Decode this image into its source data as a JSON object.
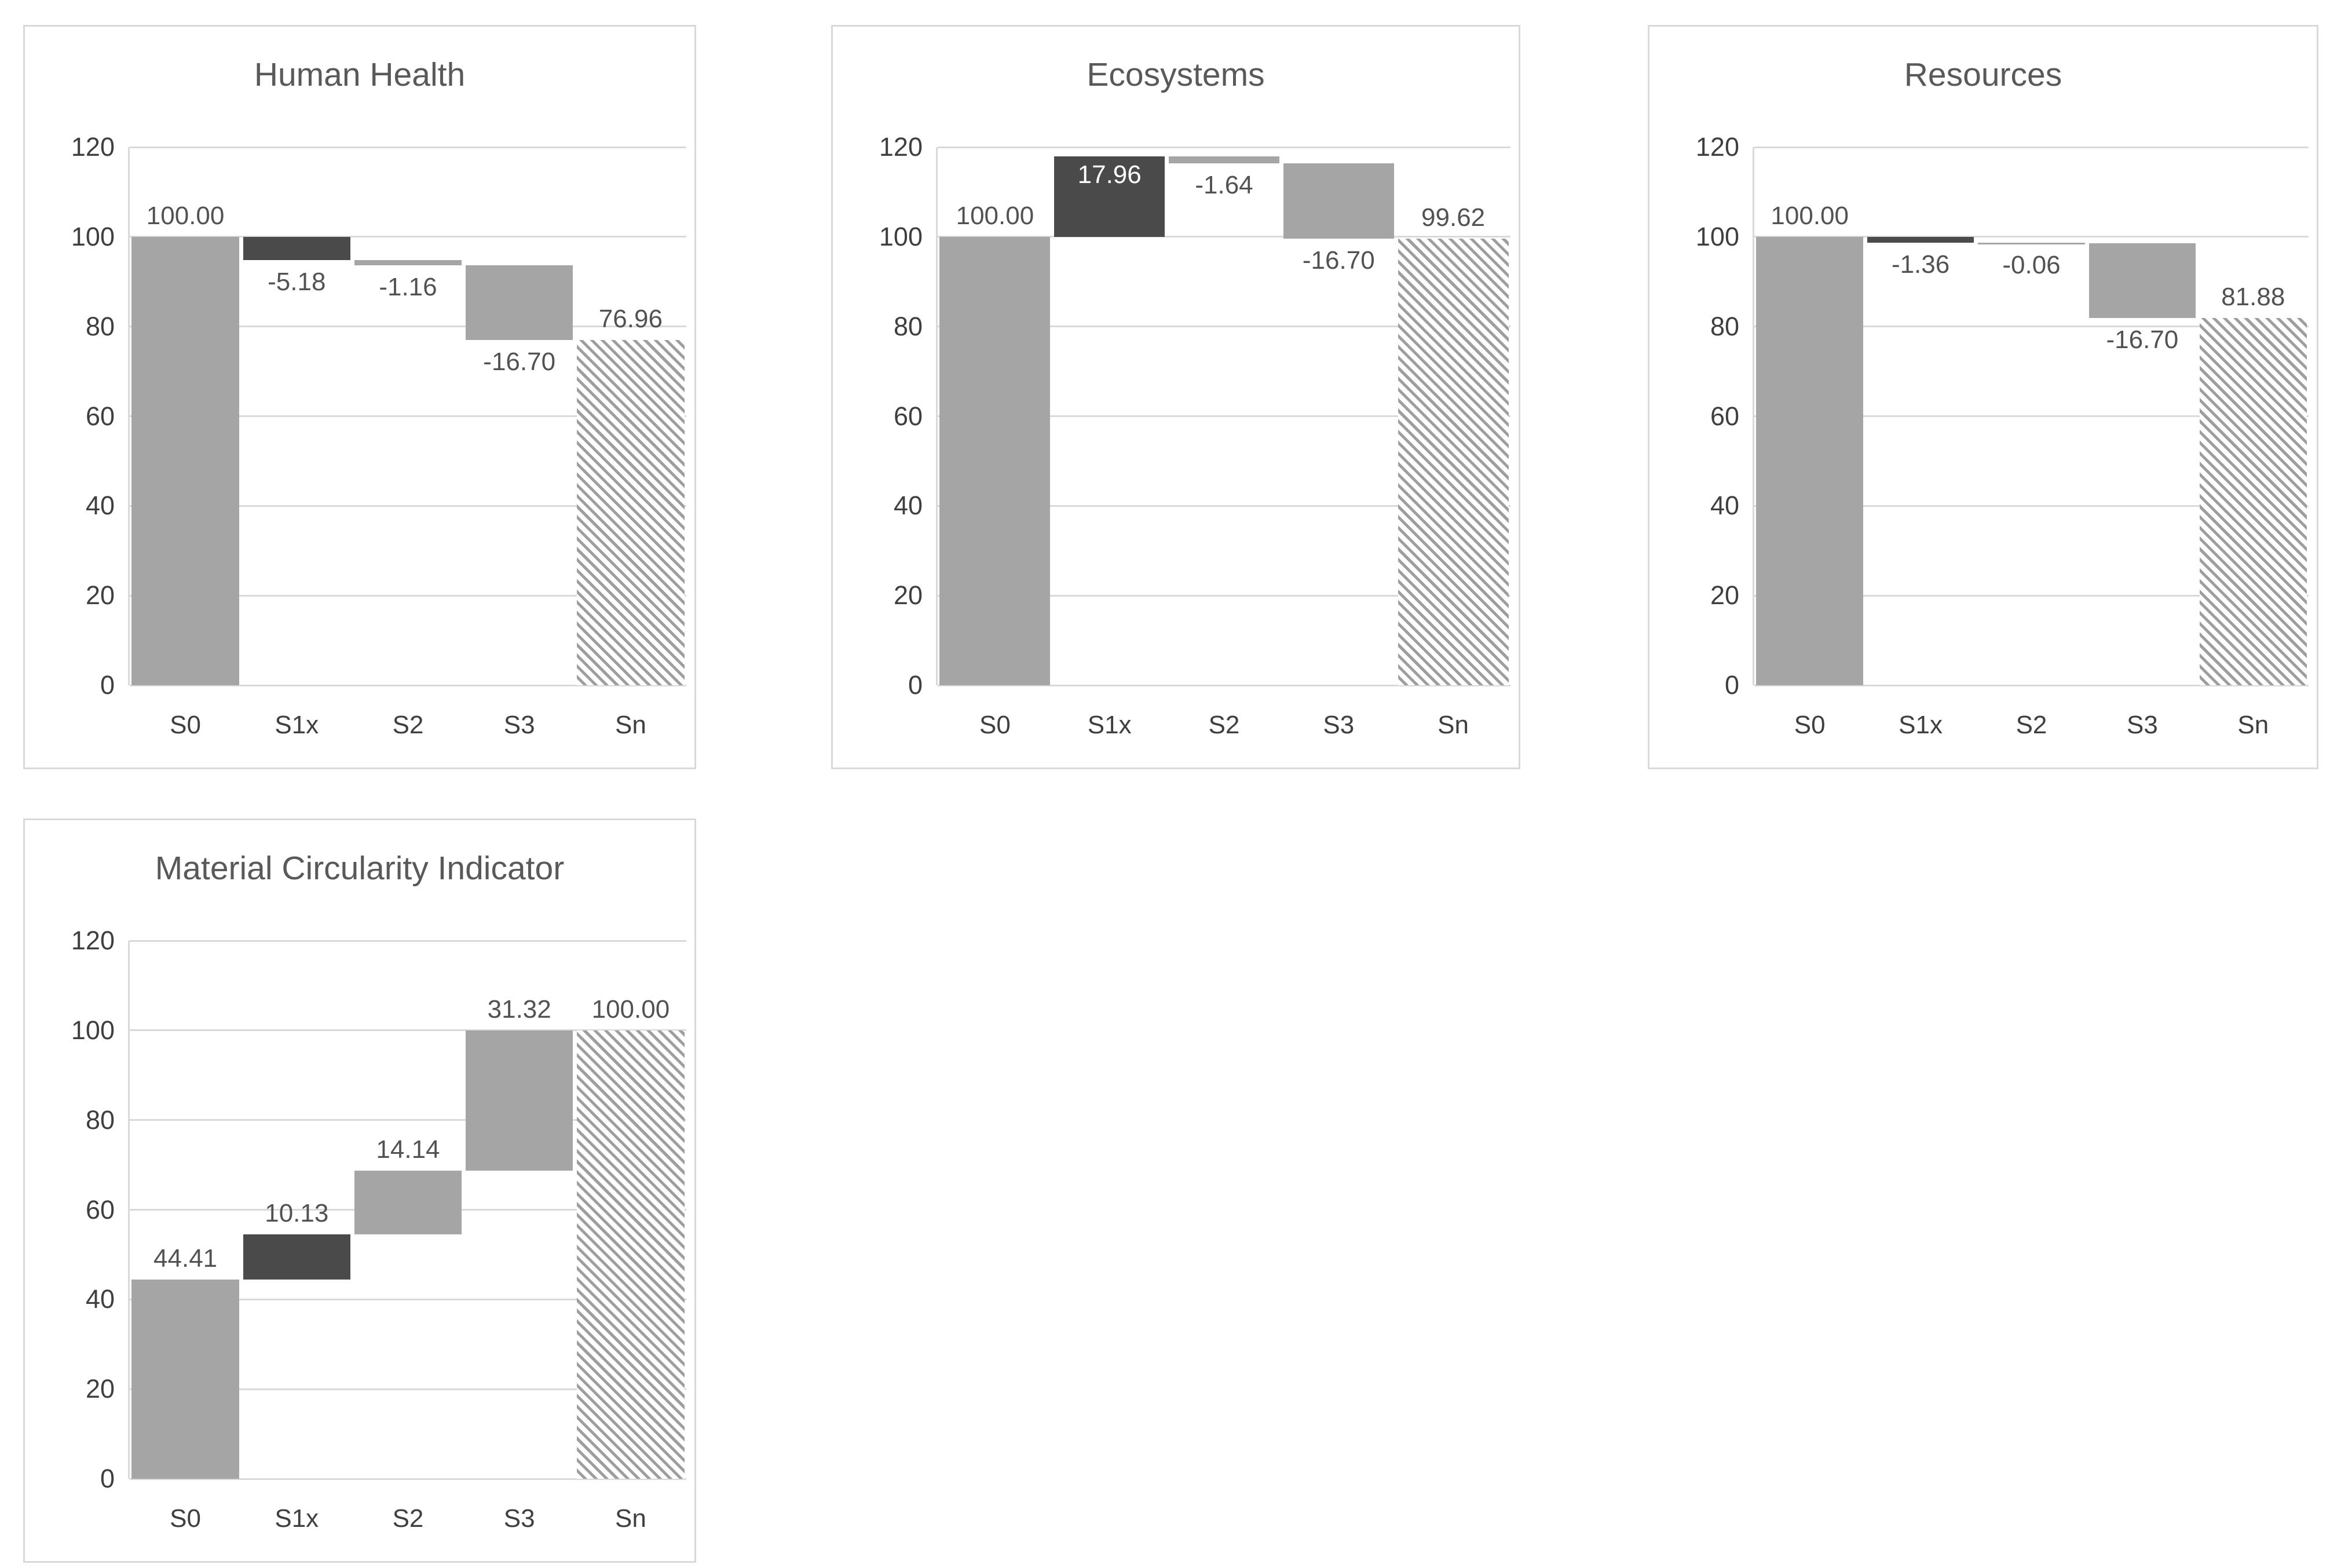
{
  "page": {
    "background": "#ffffff"
  },
  "colors": {
    "bar_gray": "#a5a5a5",
    "bar_dark": "#4a4a4a",
    "hatch_stripe": "#9e9e9e",
    "hatch_background": "#ffffff",
    "gridline": "#d9d9d9",
    "panel_border": "#d9d9d9",
    "title_text": "#595959",
    "axis_text": "#3f3f3f",
    "data_label_text": "#525252",
    "data_label_inside_text": "#ffffff"
  },
  "chart_data": [
    {
      "type": "waterfall",
      "title": "Human Health",
      "categories": [
        "S0",
        "S1x",
        "S2",
        "S3",
        "Sn"
      ],
      "ylim": [
        0,
        120
      ],
      "yticks": [
        0,
        20,
        40,
        60,
        80,
        100,
        120
      ],
      "grid": true,
      "legend": "none",
      "series": [
        {
          "category": "S0",
          "value": 100.0,
          "label": "100.00",
          "role": "start",
          "from": 0,
          "to": 100.0,
          "style": "gray",
          "label_pos": "above"
        },
        {
          "category": "S1x",
          "value": -5.18,
          "label": "-5.18",
          "role": "delta",
          "from": 100.0,
          "to": 94.82,
          "style": "dark",
          "label_pos": "below"
        },
        {
          "category": "S2",
          "value": -1.16,
          "label": "-1.16",
          "role": "delta",
          "from": 94.82,
          "to": 93.66,
          "style": "gray",
          "label_pos": "below"
        },
        {
          "category": "S3",
          "value": -16.7,
          "label": "-16.70",
          "role": "delta",
          "from": 93.66,
          "to": 76.96,
          "style": "gray",
          "label_pos": "below"
        },
        {
          "category": "Sn",
          "value": 76.96,
          "label": "76.96",
          "role": "total",
          "from": 0,
          "to": 76.96,
          "style": "hatch",
          "label_pos": "above"
        }
      ]
    },
    {
      "type": "waterfall",
      "title": "Ecosystems",
      "categories": [
        "S0",
        "S1x",
        "S2",
        "S3",
        "Sn"
      ],
      "ylim": [
        0,
        120
      ],
      "yticks": [
        0,
        20,
        40,
        60,
        80,
        100,
        120
      ],
      "grid": true,
      "legend": "none",
      "series": [
        {
          "category": "S0",
          "value": 100.0,
          "label": "100.00",
          "role": "start",
          "from": 0,
          "to": 100.0,
          "style": "gray",
          "label_pos": "above"
        },
        {
          "category": "S1x",
          "value": 17.96,
          "label": "17.96",
          "role": "delta",
          "from": 100.0,
          "to": 117.96,
          "style": "dark",
          "label_pos": "inside"
        },
        {
          "category": "S2",
          "value": -1.64,
          "label": "-1.64",
          "role": "delta",
          "from": 117.96,
          "to": 116.32,
          "style": "gray",
          "label_pos": "below"
        },
        {
          "category": "S3",
          "value": -16.7,
          "label": "-16.70",
          "role": "delta",
          "from": 116.32,
          "to": 99.62,
          "style": "gray",
          "label_pos": "below"
        },
        {
          "category": "Sn",
          "value": 99.62,
          "label": "99.62",
          "role": "total",
          "from": 0,
          "to": 99.62,
          "style": "hatch",
          "label_pos": "above"
        }
      ]
    },
    {
      "type": "waterfall",
      "title": "Resources",
      "categories": [
        "S0",
        "S1x",
        "S2",
        "S3",
        "Sn"
      ],
      "ylim": [
        0,
        120
      ],
      "yticks": [
        0,
        20,
        40,
        60,
        80,
        100,
        120
      ],
      "grid": true,
      "legend": "none",
      "series": [
        {
          "category": "S0",
          "value": 100.0,
          "label": "100.00",
          "role": "start",
          "from": 0,
          "to": 100.0,
          "style": "gray",
          "label_pos": "above"
        },
        {
          "category": "S1x",
          "value": -1.36,
          "label": "-1.36",
          "role": "delta",
          "from": 100.0,
          "to": 98.64,
          "style": "dark",
          "label_pos": "below"
        },
        {
          "category": "S2",
          "value": -0.06,
          "label": "-0.06",
          "role": "delta",
          "from": 98.64,
          "to": 98.58,
          "style": "gray",
          "label_pos": "below"
        },
        {
          "category": "S3",
          "value": -16.7,
          "label": "-16.70",
          "role": "delta",
          "from": 98.58,
          "to": 81.88,
          "style": "gray",
          "label_pos": "below"
        },
        {
          "category": "Sn",
          "value": 81.88,
          "label": "81.88",
          "role": "total",
          "from": 0,
          "to": 81.88,
          "style": "hatch",
          "label_pos": "above"
        }
      ]
    },
    {
      "type": "waterfall",
      "title": "Material Circularity Indicator",
      "categories": [
        "S0",
        "S1x",
        "S2",
        "S3",
        "Sn"
      ],
      "ylim": [
        0,
        120
      ],
      "yticks": [
        0,
        20,
        40,
        60,
        80,
        100,
        120
      ],
      "grid": true,
      "legend": "none",
      "series": [
        {
          "category": "S0",
          "value": 44.41,
          "label": "44.41",
          "role": "start",
          "from": 0,
          "to": 44.41,
          "style": "gray",
          "label_pos": "above"
        },
        {
          "category": "S1x",
          "value": 10.13,
          "label": "10.13",
          "role": "delta",
          "from": 44.41,
          "to": 54.54,
          "style": "dark",
          "label_pos": "above"
        },
        {
          "category": "S2",
          "value": 14.14,
          "label": "14.14",
          "role": "delta",
          "from": 54.54,
          "to": 68.68,
          "style": "gray",
          "label_pos": "above"
        },
        {
          "category": "S3",
          "value": 31.32,
          "label": "31.32",
          "role": "delta",
          "from": 68.68,
          "to": 100.0,
          "style": "gray",
          "label_pos": "above"
        },
        {
          "category": "Sn",
          "value": 100.0,
          "label": "100.00",
          "role": "total",
          "from": 0,
          "to": 100.0,
          "style": "hatch",
          "label_pos": "above"
        }
      ]
    }
  ]
}
